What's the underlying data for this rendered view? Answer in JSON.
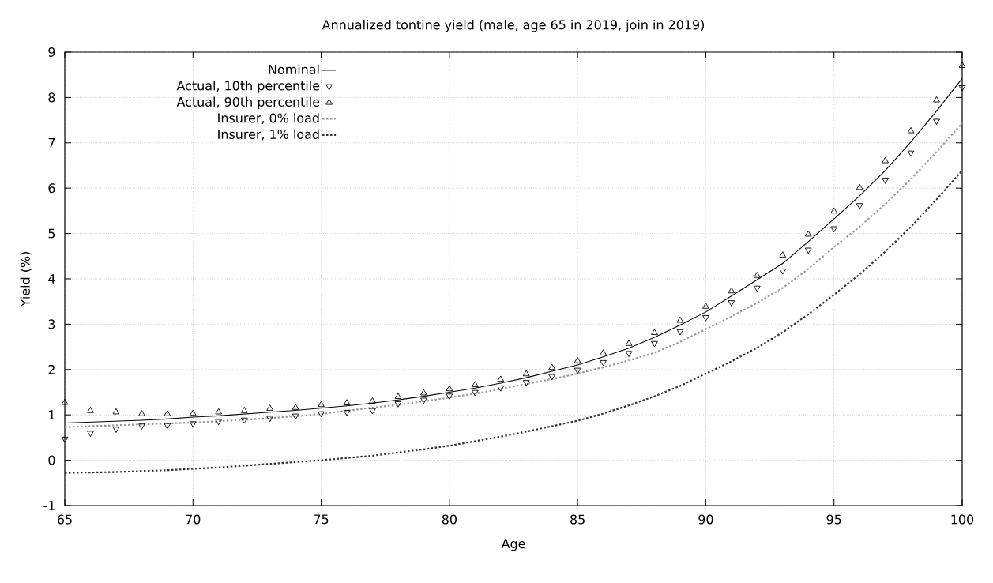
{
  "chart_data": {
    "type": "line",
    "title": "Annualized tontine yield (male, age 65 in 2019, join in 2019)",
    "xlabel": "Age",
    "ylabel": "Yield (%)",
    "x": [
      65,
      66,
      67,
      68,
      69,
      70,
      71,
      72,
      73,
      74,
      75,
      76,
      77,
      78,
      79,
      80,
      81,
      82,
      83,
      84,
      85,
      86,
      87,
      88,
      89,
      90,
      91,
      92,
      93,
      94,
      95,
      96,
      97,
      98,
      99,
      100
    ],
    "series": [
      {
        "name": "Nominal",
        "color": "#000000",
        "line_style": "solid",
        "values": [
          0.82,
          0.84,
          0.86,
          0.88,
          0.91,
          0.95,
          0.98,
          1.02,
          1.06,
          1.1,
          1.15,
          1.2,
          1.26,
          1.33,
          1.41,
          1.5,
          1.59,
          1.7,
          1.82,
          1.96,
          2.1,
          2.28,
          2.47,
          2.71,
          2.98,
          3.27,
          3.62,
          3.98,
          4.34,
          4.82,
          5.32,
          5.83,
          6.39,
          7.02,
          7.7,
          8.42
        ]
      },
      {
        "name": "Actual, 10th percentile",
        "type": "scatter",
        "color": "#000000",
        "marker": "triangle",
        "values": [
          0.47,
          0.6,
          0.69,
          0.76,
          0.77,
          0.81,
          0.86,
          0.89,
          0.93,
          0.98,
          1.03,
          1.06,
          1.1,
          1.25,
          1.33,
          1.42,
          1.5,
          1.6,
          1.72,
          1.85,
          1.99,
          2.16,
          2.36,
          2.58,
          2.84,
          3.15,
          3.48,
          3.8,
          4.18,
          4.64,
          5.11,
          5.62,
          6.18,
          6.78,
          7.48,
          8.22
        ]
      },
      {
        "name": "Actual, 90th percentile",
        "type": "scatter",
        "color": "#000000",
        "marker": "triangle",
        "values": [
          1.27,
          1.09,
          1.06,
          1.02,
          1.02,
          1.03,
          1.06,
          1.09,
          1.14,
          1.16,
          1.22,
          1.26,
          1.3,
          1.4,
          1.48,
          1.57,
          1.66,
          1.78,
          1.9,
          2.04,
          2.19,
          2.36,
          2.57,
          2.81,
          3.08,
          3.39,
          3.73,
          4.07,
          4.52,
          4.98,
          5.49,
          6.01,
          6.6,
          7.26,
          7.94,
          8.7
        ]
      },
      {
        "name": "Insurer, 0% load",
        "color": "#999999",
        "line_style": "dotted",
        "values": [
          0.73,
          0.75,
          0.77,
          0.79,
          0.81,
          0.83,
          0.86,
          0.89,
          0.93,
          0.97,
          1.02,
          1.09,
          1.16,
          1.22,
          1.3,
          1.38,
          1.47,
          1.57,
          1.68,
          1.79,
          1.91,
          2.05,
          2.2,
          2.37,
          2.61,
          2.89,
          3.17,
          3.47,
          3.8,
          4.22,
          4.7,
          5.15,
          5.65,
          6.2,
          6.8,
          7.43
        ]
      },
      {
        "name": "Insurer, 1% load",
        "color": "#333333",
        "line_style": "dotted",
        "values": [
          -0.28,
          -0.27,
          -0.26,
          -0.24,
          -0.22,
          -0.19,
          -0.16,
          -0.12,
          -0.08,
          -0.04,
          0.0,
          0.05,
          0.1,
          0.17,
          0.24,
          0.32,
          0.42,
          0.52,
          0.63,
          0.75,
          0.87,
          1.03,
          1.21,
          1.41,
          1.64,
          1.91,
          2.18,
          2.48,
          2.82,
          3.22,
          3.65,
          4.1,
          4.6,
          5.15,
          5.75,
          6.39
        ]
      }
    ],
    "xlim": [
      65,
      100
    ],
    "ylim": [
      -1,
      9
    ],
    "xticks": [
      65,
      70,
      75,
      80,
      85,
      90,
      95,
      100
    ],
    "yticks": [
      -1,
      0,
      1,
      2,
      3,
      4,
      5,
      6,
      7,
      8,
      9
    ],
    "grid": true,
    "legend": "top left"
  }
}
